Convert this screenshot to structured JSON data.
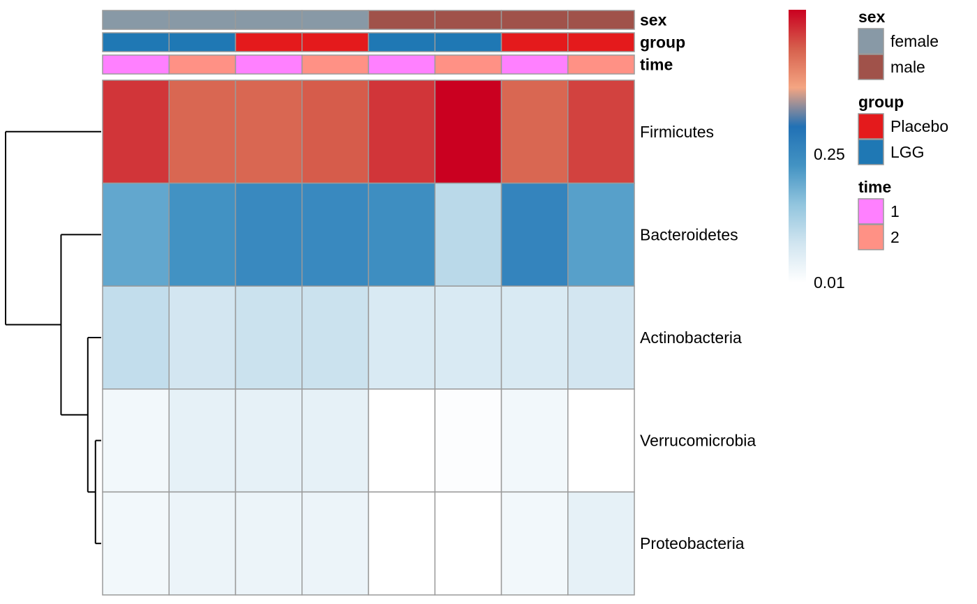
{
  "chart_data": {
    "type": "heatmap",
    "rows": [
      "Firmicutes",
      "Bacteroidetes",
      "Actinobacteria",
      "Verrucomicrobia",
      "Proteobacteria"
    ],
    "columns": 8,
    "values": [
      [
        0.48,
        0.44,
        0.44,
        0.45,
        0.48,
        0.52,
        0.44,
        0.47
      ],
      [
        0.2,
        0.23,
        0.25,
        0.25,
        0.24,
        0.11,
        0.26,
        0.21
      ],
      [
        0.1,
        0.08,
        0.09,
        0.09,
        0.07,
        0.07,
        0.07,
        0.08
      ],
      [
        0.03,
        0.05,
        0.05,
        0.05,
        0.01,
        0.015,
        0.03,
        0.01
      ],
      [
        0.03,
        0.04,
        0.04,
        0.04,
        0.01,
        0.01,
        0.03,
        0.05
      ]
    ],
    "color_scale": {
      "min": 0.01,
      "max": 0.52,
      "ticks": [
        {
          "value": 0.25,
          "label": "0.25"
        },
        {
          "value": 0.01,
          "label": "0.01"
        }
      ],
      "colors": [
        "#ffffff",
        "#d1e5f0",
        "#92c5de",
        "#4393c3",
        "#2171b5",
        "#f4a582",
        "#d6604d",
        "#ca0020"
      ]
    },
    "annotations": [
      {
        "name": "sex",
        "values": [
          "female",
          "female",
          "female",
          "female",
          "male",
          "male",
          "male",
          "male"
        ]
      },
      {
        "name": "group",
        "values": [
          "LGG",
          "LGG",
          "Placebo",
          "Placebo",
          "LGG",
          "LGG",
          "Placebo",
          "Placebo"
        ]
      },
      {
        "name": "time",
        "values": [
          "1",
          "2",
          "1",
          "2",
          "1",
          "2",
          "1",
          "2"
        ]
      }
    ],
    "legends": [
      {
        "title": "sex",
        "items": [
          {
            "label": "female",
            "color": "#8899a6"
          },
          {
            "label": "male",
            "color": "#a0524a"
          }
        ]
      },
      {
        "title": "group",
        "items": [
          {
            "label": "Placebo",
            "color": "#e41a1c"
          },
          {
            "label": "LGG",
            "color": "#1f78b4"
          }
        ]
      },
      {
        "title": "time",
        "items": [
          {
            "label": "1",
            "color": "#ff80ff"
          },
          {
            "label": "2",
            "color": "#ff9185"
          }
        ]
      }
    ],
    "row_dendrogram": {
      "merges": [
        {
          "a": "Verrucomicrobia",
          "b": "Proteobacteria",
          "height": 0.06
        },
        {
          "a": "Actinobacteria",
          "b": "(Verrucomicrobia,Proteobacteria)",
          "height": 0.14
        },
        {
          "a": "Bacteroidetes",
          "b": "(Actinobacteria,(Verrucomicrobia,Proteobacteria))",
          "height": 0.42
        },
        {
          "a": "Firmicutes",
          "b": "(Bacteroidetes,(Actinobacteria,(Verrucomicrobia,Proteobacteria)))",
          "height": 1.0
        }
      ]
    }
  }
}
